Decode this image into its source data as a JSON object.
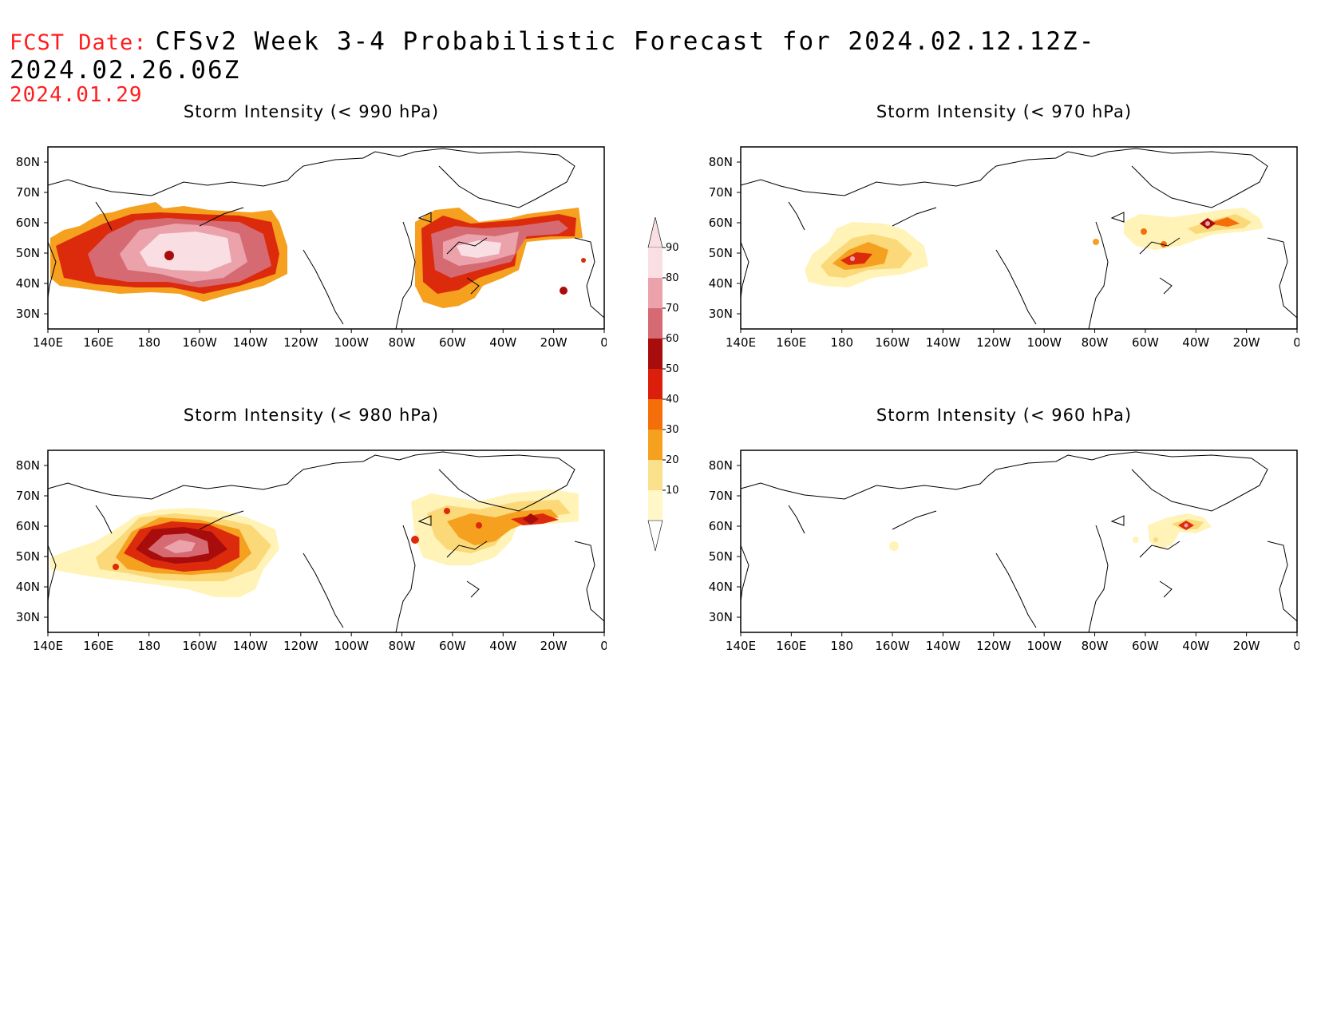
{
  "header": {
    "fcst_label": "FCST Date:",
    "title": "CFSv2 Week 3-4 Probabilistic Forecast for 2024.02.12.12Z-2024.02.26.06Z",
    "fcst_date": "2024.01.29"
  },
  "axes": {
    "lat_ticks": [
      "80N",
      "70N",
      "60N",
      "50N",
      "40N",
      "30N"
    ],
    "lon_ticks": [
      "140E",
      "160E",
      "180",
      "160W",
      "140W",
      "120W",
      "100W",
      "80W",
      "60W",
      "40W",
      "20W",
      "0"
    ]
  },
  "panels": [
    {
      "title": "Storm Intensity (< 990 hPa)"
    },
    {
      "title": "Storm Intensity (< 970 hPa)"
    },
    {
      "title": "Storm Intensity (< 980 hPa)"
    },
    {
      "title": "Storm Intensity (< 960 hPa)"
    }
  ],
  "colorbar": {
    "labels": [
      "90",
      "80",
      "70",
      "60",
      "50",
      "40",
      "30",
      "20",
      "10"
    ],
    "colors": [
      "#f9dfe3",
      "#eba2ab",
      "#d66a72",
      "#a80c0c",
      "#dc1e0c",
      "#f46e0a",
      "#f5a01e",
      "#fbe08c",
      "#fff7c8"
    ]
  },
  "fill_colors": {
    "p10": "#fff3b8",
    "p20": "#fbd878",
    "p30": "#f5a01e",
    "p40": "#f46e0a",
    "p50": "#dc2a0c",
    "p60": "#a80c0c",
    "p70": "#d66a72",
    "p80": "#eba2ab",
    "p90": "#f9dfe3"
  }
}
